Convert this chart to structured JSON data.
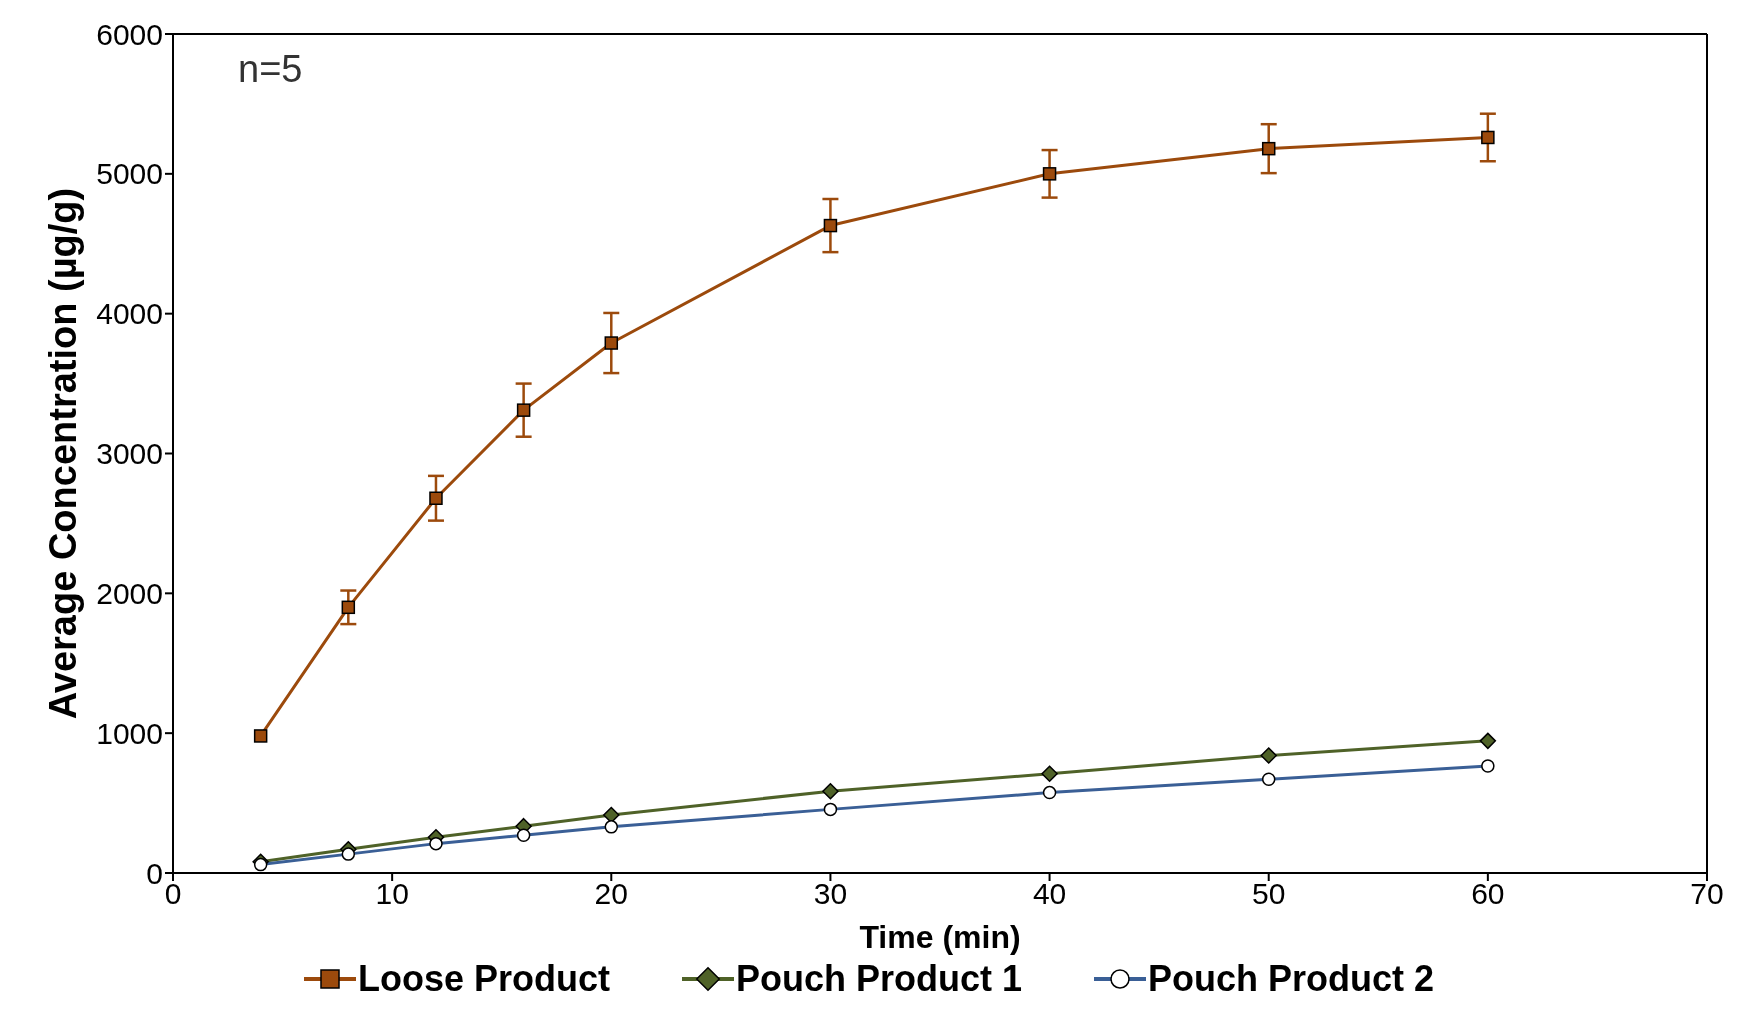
{
  "chart_data": {
    "type": "line",
    "xlabel": "Time (min)",
    "ylabel": "Average Concentration (µg/g)",
    "annotations": [
      "n=5"
    ],
    "x": [
      4,
      8,
      12,
      16,
      20,
      30,
      40,
      50,
      60
    ],
    "xlim": [
      0,
      70
    ],
    "xticks": [
      0,
      10,
      20,
      30,
      40,
      50,
      60,
      70
    ],
    "ylim": [
      0,
      6000
    ],
    "yticks": [
      0,
      1000,
      2000,
      3000,
      4000,
      5000,
      6000
    ],
    "grid": false,
    "legend": "bottom",
    "line_style": "solid",
    "series": [
      {
        "name": "Loose Product",
        "color": "#9c4a0c",
        "marker": "square",
        "values": [
          980,
          1900,
          2680,
          3310,
          3790,
          4630,
          5000,
          5180,
          5260
        ],
        "errors": [
          null,
          120,
          160,
          190,
          215,
          190,
          170,
          175,
          170
        ]
      },
      {
        "name": "Pouch Product 1",
        "color": "#4f6228",
        "marker": "diamond",
        "values": [
          80,
          170,
          255,
          335,
          415,
          585,
          710,
          840,
          945
        ]
      },
      {
        "name": "Pouch Product 2",
        "color": "#3a5f96",
        "marker": "circle",
        "values": [
          60,
          135,
          210,
          270,
          330,
          455,
          575,
          670,
          765
        ]
      }
    ]
  }
}
